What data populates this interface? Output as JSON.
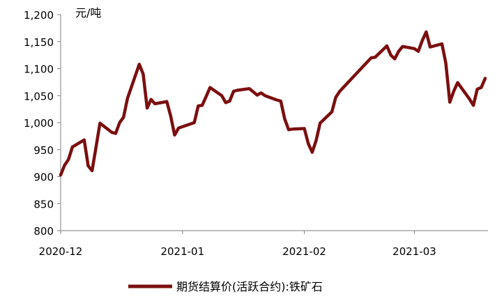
{
  "chart_data": {
    "type": "line",
    "unit_label": "元/吨",
    "ylim": [
      800,
      1200
    ],
    "y_ticks": [
      "800",
      "850",
      "900",
      "950",
      "1,000",
      "1,050",
      "1,100",
      "1,150",
      "1,200"
    ],
    "x_tick_labels": [
      "2020-12",
      "2021-01",
      "2021-02",
      "2021-03"
    ],
    "x_tick_dates": [
      "2020-12-01",
      "2021-01-01",
      "2021-02-01",
      "2021-03-01"
    ],
    "xlim": [
      "2020-12-01",
      "2021-03-19"
    ],
    "grid": false,
    "legend_position": "bottom",
    "series": [
      {
        "name": "期货结算价(活跃合约):铁矿石",
        "color": "#7b0f0f",
        "points": [
          [
            "2020-12-01",
            903
          ],
          [
            "2020-12-02",
            921
          ],
          [
            "2020-12-03",
            932
          ],
          [
            "2020-12-04",
            955
          ],
          [
            "2020-12-07",
            968
          ],
          [
            "2020-12-08",
            920
          ],
          [
            "2020-12-09",
            911
          ],
          [
            "2020-12-10",
            955
          ],
          [
            "2020-12-11",
            999
          ],
          [
            "2020-12-14",
            982
          ],
          [
            "2020-12-15",
            980
          ],
          [
            "2020-12-16",
            1000
          ],
          [
            "2020-12-17",
            1010
          ],
          [
            "2020-12-18",
            1045
          ],
          [
            "2020-12-21",
            1108
          ],
          [
            "2020-12-22",
            1090
          ],
          [
            "2020-12-23",
            1027
          ],
          [
            "2020-12-24",
            1043
          ],
          [
            "2020-12-25",
            1035
          ],
          [
            "2020-12-28",
            1039
          ],
          [
            "2020-12-29",
            1012
          ],
          [
            "2020-12-30",
            977
          ],
          [
            "2020-12-31",
            990
          ],
          [
            "2021-01-04",
            1000
          ],
          [
            "2021-01-05",
            1031
          ],
          [
            "2021-01-06",
            1032
          ],
          [
            "2021-01-07",
            1048
          ],
          [
            "2021-01-08",
            1065
          ],
          [
            "2021-01-11",
            1050
          ],
          [
            "2021-01-12",
            1037
          ],
          [
            "2021-01-13",
            1040
          ],
          [
            "2021-01-14",
            1058
          ],
          [
            "2021-01-15",
            1060
          ],
          [
            "2021-01-18",
            1063
          ],
          [
            "2021-01-19",
            1057
          ],
          [
            "2021-01-20",
            1051
          ],
          [
            "2021-01-21",
            1055
          ],
          [
            "2021-01-22",
            1050
          ],
          [
            "2021-01-25",
            1042
          ],
          [
            "2021-01-26",
            1040
          ],
          [
            "2021-01-27",
            1007
          ],
          [
            "2021-01-28",
            987
          ],
          [
            "2021-01-29",
            988
          ],
          [
            "2021-02-01",
            989
          ],
          [
            "2021-02-02",
            961
          ],
          [
            "2021-02-03",
            945
          ],
          [
            "2021-02-04",
            967
          ],
          [
            "2021-02-05",
            999
          ],
          [
            "2021-02-08",
            1020
          ],
          [
            "2021-02-09",
            1047
          ],
          [
            "2021-02-10",
            1058
          ],
          [
            "2021-02-18",
            1120
          ],
          [
            "2021-02-19",
            1121
          ],
          [
            "2021-02-22",
            1142
          ],
          [
            "2021-02-23",
            1125
          ],
          [
            "2021-02-24",
            1118
          ],
          [
            "2021-02-25",
            1132
          ],
          [
            "2021-02-26",
            1141
          ],
          [
            "2021-03-01",
            1137
          ],
          [
            "2021-03-02",
            1132
          ],
          [
            "2021-03-03",
            1152
          ],
          [
            "2021-03-04",
            1168
          ],
          [
            "2021-03-05",
            1140
          ],
          [
            "2021-03-08",
            1146
          ],
          [
            "2021-03-09",
            1110
          ],
          [
            "2021-03-10",
            1038
          ],
          [
            "2021-03-11",
            1058
          ],
          [
            "2021-03-12",
            1074
          ],
          [
            "2021-03-15",
            1044
          ],
          [
            "2021-03-16",
            1032
          ],
          [
            "2021-03-17",
            1062
          ],
          [
            "2021-03-18",
            1065
          ],
          [
            "2021-03-19",
            1082
          ]
        ]
      }
    ]
  }
}
